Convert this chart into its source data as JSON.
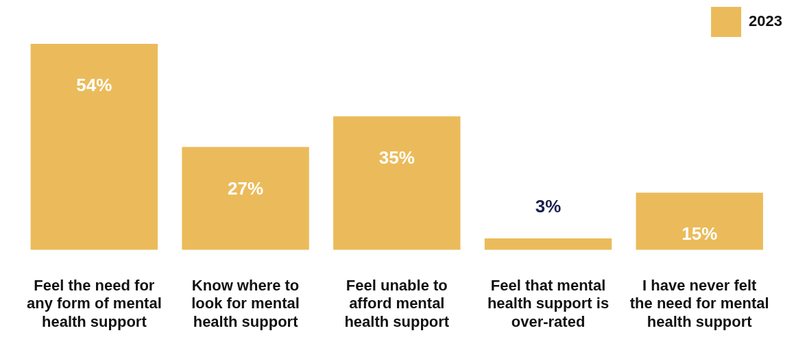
{
  "chart_data": {
    "type": "bar",
    "categories": [
      "Feel the need for any form of mental health support",
      "Know where to look for mental health support",
      "Feel unable to afford mental health support",
      "Feel that mental health support is over-rated",
      "I have never felt the need for mental health support"
    ],
    "series": [
      {
        "name": "2023",
        "color": "#ebbb5b",
        "values": [
          54,
          27,
          35,
          3,
          15
        ],
        "value_labels": [
          "54%",
          "27%",
          "35%",
          "3%",
          "15%"
        ]
      }
    ],
    "legend": "top right",
    "grid": false
  }
}
